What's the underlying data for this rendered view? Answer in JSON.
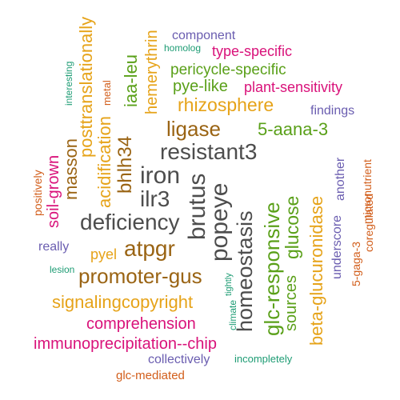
{
  "words": [
    {
      "text": "resistant3",
      "color": "#4d4d4d"
    },
    {
      "text": "iron",
      "color": "#4d4d4d"
    },
    {
      "text": "brutus",
      "color": "#4d4d4d"
    },
    {
      "text": "popeye",
      "color": "#4d4d4d"
    },
    {
      "text": "ilr3",
      "color": "#4d4d4d"
    },
    {
      "text": "deficiency",
      "color": "#4d4d4d"
    },
    {
      "text": "homeostasis",
      "color": "#4d4d4d"
    },
    {
      "text": "ligase",
      "color": "#9a6414"
    },
    {
      "text": "bhlh34",
      "color": "#9a6414"
    },
    {
      "text": "atpgr",
      "color": "#9a6414"
    },
    {
      "text": "promoter-gus",
      "color": "#9a6414"
    },
    {
      "text": "masson",
      "color": "#9a6414"
    },
    {
      "text": "posttranslationally",
      "color": "#e6a319"
    },
    {
      "text": "acidification",
      "color": "#e6a319"
    },
    {
      "text": "hemerythrin",
      "color": "#e6a319"
    },
    {
      "text": "rhizosphere",
      "color": "#e6a319"
    },
    {
      "text": "beta-glucuronidase",
      "color": "#e6a319"
    },
    {
      "text": "signalingcopyright",
      "color": "#e6a319"
    },
    {
      "text": "pyel",
      "color": "#e6a319"
    },
    {
      "text": "iaa-leu",
      "color": "#5aa019"
    },
    {
      "text": "pericycle-specific",
      "color": "#5aa019"
    },
    {
      "text": "pye-like",
      "color": "#5aa019"
    },
    {
      "text": "5-aana-3",
      "color": "#5aa019"
    },
    {
      "text": "glc-responsive",
      "color": "#5aa019"
    },
    {
      "text": "sources",
      "color": "#5aa019"
    },
    {
      "text": "glucose",
      "color": "#5aa019"
    },
    {
      "text": "component",
      "color": "#6a5db0"
    },
    {
      "text": "findings",
      "color": "#6a5db0"
    },
    {
      "text": "another",
      "color": "#6a5db0"
    },
    {
      "text": "underscore",
      "color": "#6a5db0"
    },
    {
      "text": "really",
      "color": "#6a5db0"
    },
    {
      "text": "collectively",
      "color": "#6a5db0"
    },
    {
      "text": "type-specific",
      "color": "#d9127a"
    },
    {
      "text": "plant-sensitivity",
      "color": "#d9127a"
    },
    {
      "text": "soil-grown",
      "color": "#d9127a"
    },
    {
      "text": "comprehension",
      "color": "#d9127a"
    },
    {
      "text": "immunoprecipitation--chip",
      "color": "#d9127a"
    },
    {
      "text": "homolog",
      "color": "#1e9c74"
    },
    {
      "text": "interesting",
      "color": "#1e9c74"
    },
    {
      "text": "lesion",
      "color": "#1e9c74"
    },
    {
      "text": "tightly",
      "color": "#1e9c74"
    },
    {
      "text": "climate",
      "color": "#1e9c74"
    },
    {
      "text": "incompletely",
      "color": "#1e9c74"
    },
    {
      "text": "metal",
      "color": "#d25e1b"
    },
    {
      "text": "positively",
      "color": "#d25e1b"
    },
    {
      "text": "micronutrient",
      "color": "#d25e1b"
    },
    {
      "text": "coregulated",
      "color": "#d25e1b"
    },
    {
      "text": "5-gaga-3",
      "color": "#d25e1b"
    },
    {
      "text": "glc-mediated",
      "color": "#d25e1b"
    }
  ]
}
